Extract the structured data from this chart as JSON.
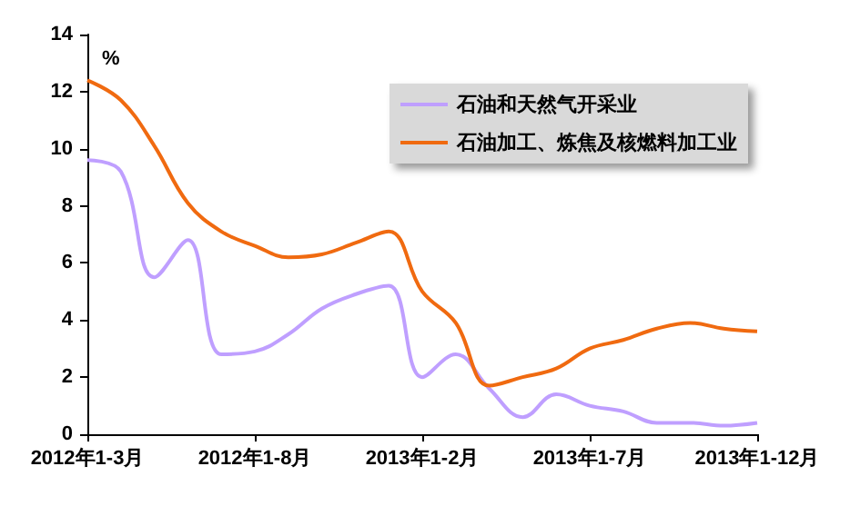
{
  "chart_data": {
    "type": "line",
    "ylabel": "%",
    "categories": [
      "2012年1-3月",
      null,
      null,
      null,
      null,
      "2012年1-8月",
      null,
      null,
      null,
      null,
      "2013年1-2月",
      null,
      null,
      null,
      null,
      "2013年1-7月",
      null,
      null,
      null,
      null,
      "2013年1-12月"
    ],
    "series": [
      {
        "name": "石油和天然气开采业",
        "color": "#bf9fff",
        "values": [
          9.6,
          9.2,
          5.5,
          6.8,
          2.8,
          2.9,
          3.5,
          4.4,
          4.9,
          5.2,
          2.0,
          2.8,
          1.6,
          0.6,
          1.4,
          1.0,
          0.8,
          0.4,
          0.4,
          0.3,
          0.4
        ]
      },
      {
        "name": "石油加工、炼焦及核燃料加工业",
        "color": "#f06a10",
        "values": [
          12.4,
          11.7,
          10.1,
          8.1,
          7.1,
          6.6,
          6.2,
          6.3,
          6.7,
          7.1,
          5.0,
          3.9,
          1.7,
          2.0,
          2.3,
          3.0,
          3.3,
          3.7,
          3.9,
          3.7,
          3.6
        ]
      }
    ],
    "ylim": [
      0,
      14
    ],
    "yticks": [
      0,
      2,
      4,
      6,
      8,
      10,
      12,
      14
    ],
    "grid": false,
    "legend": "top right",
    "marker": "none",
    "line_style": "solid"
  }
}
